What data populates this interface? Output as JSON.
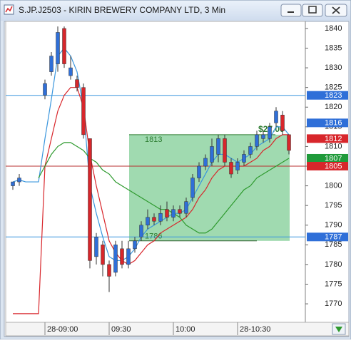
{
  "chart_data": {
    "type": "candlestick",
    "title": "S.JP.J2503 - KIRIN BREWERY COMPANY LTD, 3 Min",
    "categories": [
      null,
      null,
      null,
      null,
      null,
      null,
      "28-09:00",
      null,
      null,
      null,
      null,
      null,
      null,
      null,
      null,
      null,
      "09:30",
      null,
      null,
      null,
      null,
      null,
      null,
      null,
      null,
      null,
      "10:00",
      null,
      null,
      null,
      null,
      null,
      null,
      null,
      null,
      null,
      "28-10:30",
      null,
      null,
      null,
      null,
      null,
      null,
      null,
      null
    ],
    "open": [
      null,
      1800,
      1801,
      null,
      null,
      null,
      1823,
      1829,
      1831,
      1840,
      1828,
      1827,
      1825,
      1812,
      1782,
      1785,
      1780,
      1778,
      1784,
      1780,
      1784,
      1787,
      1790,
      1792,
      1791,
      1794,
      1792,
      1794,
      1793,
      1797,
      1802,
      1805,
      1806,
      1808,
      1812,
      1806,
      1804,
      1806,
      1808,
      1810,
      1812,
      1812,
      1816,
      1818,
      1813
    ],
    "high": [
      null,
      1801,
      1803,
      null,
      null,
      null,
      1827,
      1834,
      1840.5,
      1840.5,
      1833,
      1828,
      1826,
      1812,
      1788,
      1786,
      1781,
      1786,
      1786,
      1786,
      1787,
      1791,
      1794,
      1793,
      1795,
      1796,
      1795,
      1795,
      1797,
      1803,
      1806,
      1808,
      1812,
      1813,
      1813,
      1807,
      1807,
      1809,
      1811,
      1814,
      1814,
      1816,
      1820,
      1819,
      1813
    ],
    "low": [
      null,
      1799,
      1800,
      null,
      null,
      null,
      1822,
      1828,
      1829,
      1830,
      1827,
      1824,
      1812,
      1779,
      1780,
      1777,
      1773,
      1777,
      1779,
      1779,
      1783,
      1786,
      1789,
      1790,
      1790,
      1791,
      1791,
      1792,
      1792,
      1796,
      1801,
      1804,
      1805,
      1806,
      1805,
      1802,
      1803,
      1805,
      1807,
      1809,
      1811,
      1811,
      1815,
      1813,
      1808
    ],
    "close": [
      null,
      1801,
      1802,
      null,
      null,
      null,
      1826,
      1833,
      1839,
      1831,
      1830,
      1825,
      1813,
      1781,
      1787,
      1780,
      1777,
      1785,
      1780,
      1784,
      1786,
      1790,
      1792,
      1791,
      1793,
      1792,
      1794,
      1793,
      1796,
      1802,
      1805,
      1807,
      1810,
      1812,
      1806,
      1803,
      1806,
      1808,
      1810,
      1813,
      1813,
      1815,
      1819,
      1814,
      1809
    ],
    "up_color": "#2f6fd8",
    "down_color": "#d8262b",
    "lines": [
      {
        "color": "#3a96dd",
        "values": [
          null,
          1801,
          1801.5,
          1801,
          1801,
          1801,
          1812,
          1822,
          1833,
          1835,
          1833,
          1829,
          1820,
          1800,
          1793,
          1787,
          1782,
          1781,
          1781,
          1782,
          1784,
          1787,
          1789,
          1790,
          1791,
          1792,
          1793,
          1793,
          1794,
          1797,
          1800,
          1803,
          1806,
          1808,
          1808,
          1807,
          1806,
          1807,
          1808,
          1810,
          1811,
          1812,
          1815,
          1815,
          1813
        ]
      },
      {
        "color": "#d8262b",
        "values": [
          null,
          1767.5,
          1767.5,
          1767.5,
          1767.5,
          1767.5,
          1805,
          1812,
          1819,
          1823,
          1825,
          1825,
          1820,
          1808,
          1800,
          1793,
          1786,
          1783,
          1781,
          1780,
          1781,
          1783,
          1785,
          1786,
          1788,
          1789,
          1790,
          1791,
          1792,
          1794,
          1797,
          1799,
          1802,
          1804,
          1805,
          1805,
          1805,
          1805,
          1806,
          1807,
          1809,
          1810,
          1812,
          1813,
          1813
        ]
      },
      {
        "color": "#2e9a2e",
        "values": [
          null,
          null,
          null,
          null,
          null,
          1802,
          1805,
          1808,
          1810,
          1811,
          1811,
          1810,
          1809,
          1807,
          1806,
          1804,
          1803,
          1801,
          1800,
          1799,
          1798,
          1797,
          1796,
          1795,
          1794,
          1794,
          1793,
          1792,
          1790,
          1789,
          1788,
          1788,
          1789,
          1791,
          1793,
          1795,
          1797,
          1799,
          1800,
          1802,
          1803,
          1804,
          1805,
          1806,
          1807
        ]
      }
    ],
    "hlines": [
      {
        "value": 1823,
        "color": "#3a96dd"
      },
      {
        "value": 1805,
        "color": "#b83030"
      },
      {
        "value": 1787,
        "color": "#3a96dd"
      }
    ],
    "range_box": {
      "top": 1813,
      "bottom": 1786,
      "label": "$27.00",
      "color": "#8fd4a2"
    },
    "price_markers": [
      {
        "value": 1823,
        "color": "#2f6fd8"
      },
      {
        "value": 1816,
        "color": "#2f6fd8"
      },
      {
        "value": 1812,
        "color": "#d8262b"
      },
      {
        "value": 1807,
        "color": "#1f9a3a"
      },
      {
        "value": 1805,
        "color": "#d8262b"
      },
      {
        "value": 1787,
        "color": "#2f6fd8"
      }
    ],
    "ylim": [
      1765.3,
      1841.8
    ],
    "yticks": [
      1770,
      1775,
      1780,
      1785,
      1790,
      1795,
      1800,
      1805,
      1810,
      1815,
      1820,
      1825,
      1830,
      1835,
      1840
    ]
  }
}
